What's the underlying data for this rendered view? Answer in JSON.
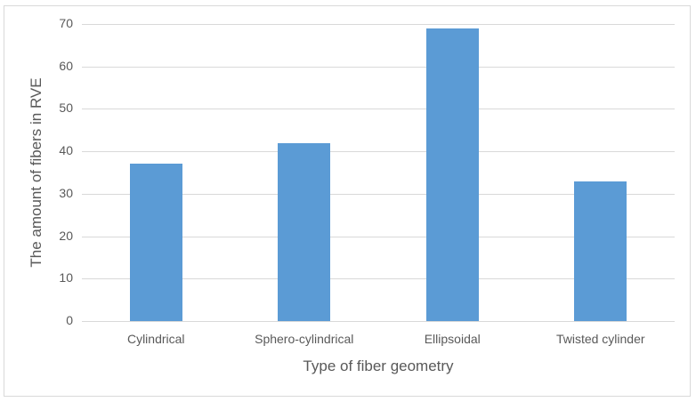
{
  "chart_data": {
    "type": "bar",
    "title": "",
    "categories": [
      "Cylindrical",
      "Sphero-cylindrical",
      "Ellipsoidal",
      "Twisted cylinder"
    ],
    "values": [
      37,
      42,
      69,
      33
    ],
    "xlabel": "Type of fiber geometry",
    "ylabel": "The amount of fibers in RVE",
    "ylim": [
      0,
      70
    ],
    "yticks": [
      0,
      10,
      20,
      30,
      40,
      50,
      60,
      70
    ],
    "grid": true,
    "legend": null,
    "bar_color": "#5b9bd5"
  }
}
